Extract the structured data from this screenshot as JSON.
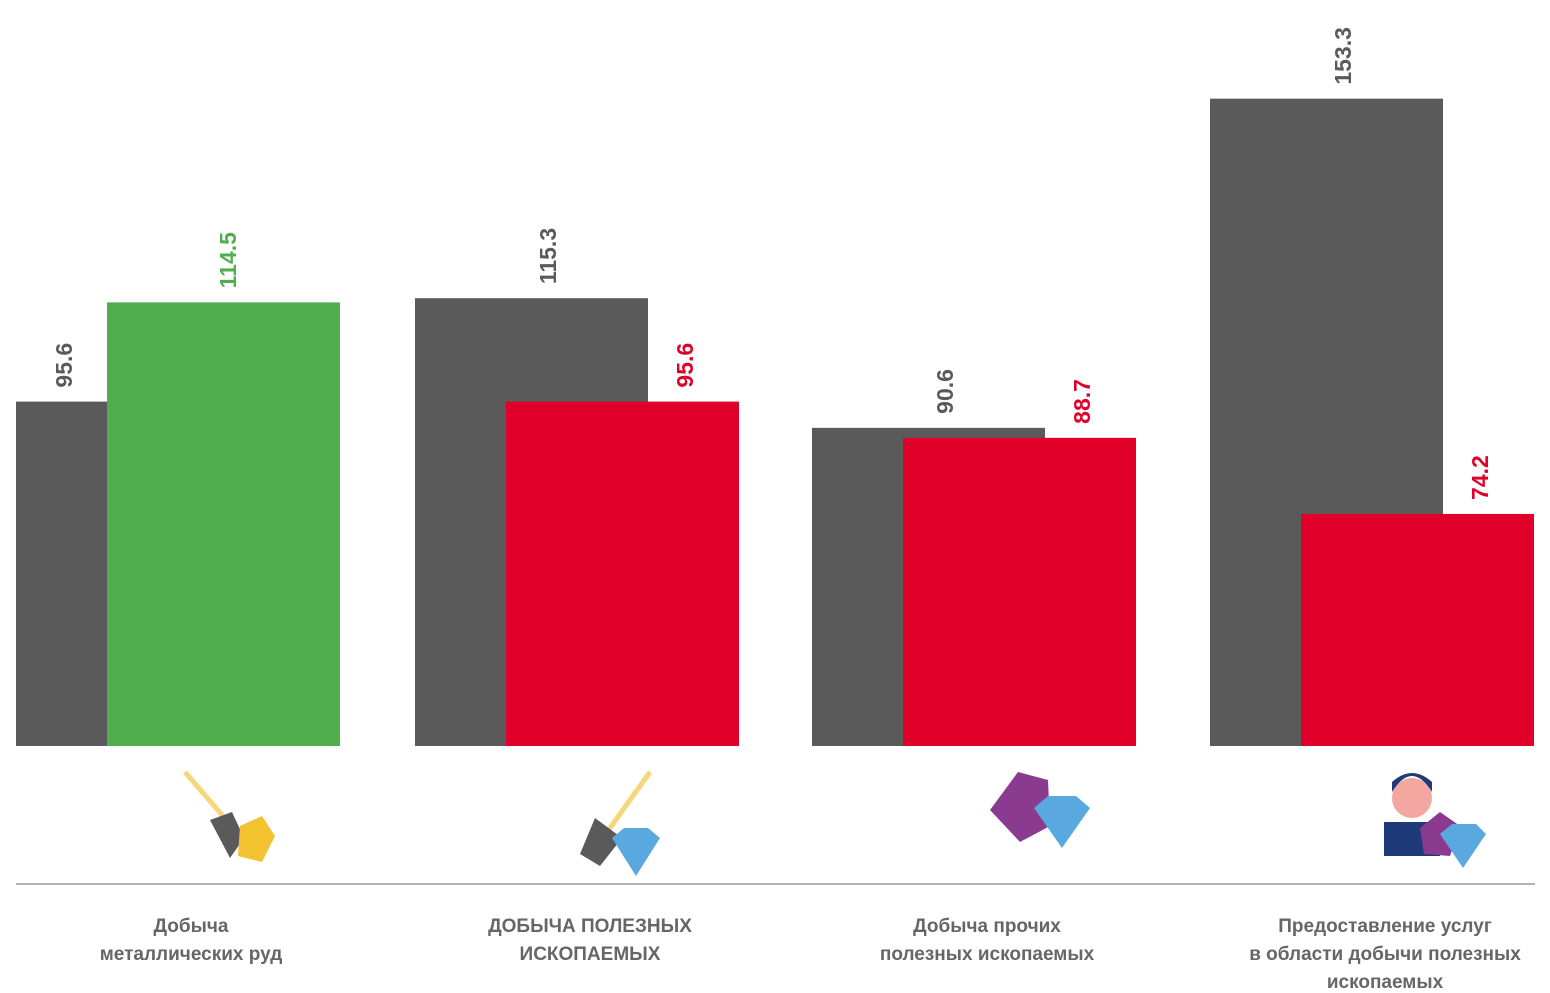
{
  "chart_data": {
    "type": "bar",
    "categories": [
      "Добыча\nметаллических руд",
      "ДОБЫЧА ПОЛЕЗНЫХ\nИСКОПАЕМЫХ",
      "Добыча прочих\nполезных ископаемых",
      "Предоставление услуг\nв области добычи полезных\nископаемых"
    ],
    "series": [
      {
        "color": "#5a5a5a",
        "values": [
          95.6,
          115.3,
          90.6,
          153.3
        ]
      },
      {
        "colors": [
          "#50ae4f",
          "#e0002a",
          "#e0002a",
          "#e0002a"
        ],
        "values": [
          114.5,
          95.6,
          88.7,
          74.2
        ]
      }
    ],
    "ylim": [
      30,
      160
    ]
  }
}
